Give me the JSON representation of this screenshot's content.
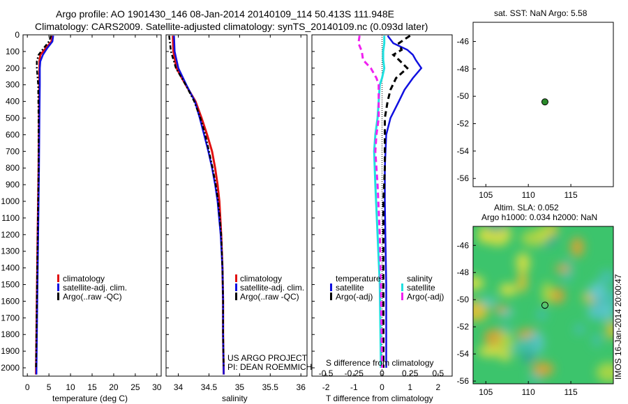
{
  "header": {
    "line1": "Argo profile: AO 1901430_146 08-Jan-2014 20140109_114 50.413S 111.948E",
    "line2": "Climatology: CARS2009. Satellite-adjusted climatology: synTS_20140109.nc (0.093d later)"
  },
  "colors": {
    "climatology": "#e01010",
    "satellite": "#1010e0",
    "argo": "#000000",
    "sal_satellite": "#20e0e0",
    "sal_argo": "#f020f0",
    "sst_marker": "#2a8a2a"
  },
  "chart_data": [
    {
      "type": "line",
      "panel": "temperature",
      "xlabel": "temperature (deg C)",
      "ylim": [
        2050,
        0
      ],
      "xlim": [
        -1,
        31
      ],
      "xticks": [
        "0",
        "5",
        "10",
        "15",
        "20",
        "25",
        "30"
      ],
      "yticks": [
        "0",
        "100",
        "200",
        "300",
        "400",
        "500",
        "600",
        "700",
        "800",
        "900",
        "1000",
        "1100",
        "1200",
        "1300",
        "1400",
        "1500",
        "1600",
        "1700",
        "1800",
        "1900",
        "2000"
      ],
      "legend": [
        "climatology",
        "satellite-adj. clim.",
        "Argo(..raw -QC)"
      ],
      "series": [
        {
          "name": "climatology",
          "depth": [
            5,
            40,
            80,
            120,
            160,
            200,
            300,
            500,
            800,
            1200,
            1600,
            2040
          ],
          "values": [
            5.8,
            5.6,
            4.3,
            3.0,
            2.8,
            2.8,
            2.8,
            2.7,
            2.6,
            2.4,
            2.2,
            2.0
          ]
        },
        {
          "name": "satellite-adj. clim.",
          "depth": [
            5,
            40,
            80,
            120,
            160,
            200,
            300,
            500,
            800,
            1200,
            1600,
            2040
          ],
          "values": [
            6.0,
            5.8,
            4.6,
            3.6,
            3.0,
            2.9,
            2.9,
            2.8,
            2.7,
            2.5,
            2.3,
            2.1
          ]
        },
        {
          "name": "Argo(..raw -QC)",
          "depth": [
            5,
            40,
            80,
            120,
            160,
            200,
            300,
            500,
            800,
            1200,
            1600,
            2000
          ],
          "values": [
            5.5,
            5.0,
            3.8,
            2.6,
            2.2,
            2.2,
            2.5,
            2.6,
            2.6,
            2.4,
            2.2,
            2.0
          ]
        }
      ]
    },
    {
      "type": "line",
      "panel": "salinity",
      "xlabel": "salinity",
      "ylim": [
        2050,
        0
      ],
      "xlim": [
        33.8,
        36.1
      ],
      "xticks": [
        "34",
        "34.5",
        "35",
        "35.5",
        "36"
      ],
      "legend": [
        "climatology",
        "satellite-adj. clim.",
        "Argo(..raw -QC)"
      ],
      "annotation": [
        "US ARGO PROJECT",
        "PI: DEAN ROEMMICH"
      ],
      "series": [
        {
          "name": "climatology",
          "depth": [
            5,
            100,
            200,
            300,
            400,
            500,
            600,
            700,
            800,
            900,
            1000,
            1200,
            1400,
            1600,
            1800,
            2040
          ],
          "values": [
            33.91,
            33.92,
            33.97,
            34.12,
            34.28,
            34.38,
            34.47,
            34.55,
            34.6,
            34.64,
            34.67,
            34.7,
            34.72,
            34.73,
            34.73,
            34.74
          ]
        },
        {
          "name": "satellite-adj. clim.",
          "depth": [
            5,
            100,
            200,
            300,
            400,
            500,
            600,
            700,
            800,
            900,
            1000,
            1200,
            1400,
            1600,
            1800,
            2040
          ],
          "values": [
            33.93,
            33.94,
            34.0,
            34.13,
            34.27,
            34.35,
            34.42,
            34.49,
            34.55,
            34.6,
            34.64,
            34.69,
            34.72,
            34.73,
            34.73,
            34.74
          ]
        },
        {
          "name": "Argo(..raw -QC)",
          "depth": [
            5,
            100,
            200,
            300,
            400,
            500,
            600,
            700,
            800,
            900,
            1000,
            1200,
            1400,
            1600,
            1800,
            2000
          ],
          "values": [
            33.85,
            33.88,
            33.96,
            34.12,
            34.26,
            34.36,
            34.44,
            34.5,
            34.56,
            34.61,
            34.65,
            34.7,
            34.72,
            34.73,
            34.73,
            34.74
          ]
        }
      ]
    },
    {
      "type": "line",
      "panel": "difference",
      "xlabel": "T difference from climatology",
      "xlabel_top": "S difference from climatology",
      "xlim_T": [
        -2.5,
        2.5
      ],
      "xticks_T": [
        "-2",
        "-1",
        "0",
        "1",
        "2"
      ],
      "xticks_S": [
        "-0.5",
        "-0.25",
        "0",
        "0.25",
        "0.5"
      ],
      "legend_titles": [
        "temperature",
        "salinity"
      ],
      "legend": [
        "satellite",
        "Argo(-adj)",
        "satellite",
        "Argo(-adj)"
      ],
      "series": [
        {
          "name": "temperature satellite",
          "depth": [
            5,
            50,
            90,
            120,
            150,
            200,
            260,
            330,
            400,
            500,
            600,
            800,
            1000,
            1200,
            1500,
            1800,
            2000
          ],
          "values": [
            0.2,
            0.4,
            0.9,
            1.1,
            1.2,
            1.4,
            1.1,
            0.8,
            0.6,
            0.3,
            0.15,
            0.1,
            0.1,
            0.12,
            0.15,
            0.15,
            0.15
          ]
        },
        {
          "name": "temperature Argo(-adj)",
          "depth": [
            5,
            50,
            90,
            120,
            150,
            200,
            260,
            330,
            400,
            500,
            600,
            800,
            1000,
            1200,
            1500,
            1800,
            2000
          ],
          "values": [
            1.0,
            0.6,
            0.7,
            0.4,
            0.6,
            0.9,
            0.5,
            0.3,
            0.2,
            0.1,
            0.1,
            0.1,
            0.05,
            0.05,
            0.05,
            0.05,
            0.05
          ]
        },
        {
          "name": "salinity satellite",
          "depth": [
            5,
            50,
            100,
            150,
            200,
            260,
            300,
            400,
            500,
            600,
            700,
            900,
            1200,
            1500,
            2000
          ],
          "values": [
            0.02,
            0.02,
            0.01,
            0.01,
            0.02,
            0.0,
            -0.02,
            -0.03,
            -0.04,
            -0.06,
            -0.07,
            -0.06,
            -0.04,
            -0.02,
            -0.01
          ]
        },
        {
          "name": "salinity Argo(-adj)",
          "depth": [
            5,
            50,
            100,
            150,
            200,
            260,
            300,
            400,
            500,
            600,
            700,
            900,
            1200,
            1500,
            2000
          ],
          "values": [
            -0.2,
            -0.21,
            -0.18,
            -0.17,
            -0.1,
            -0.05,
            -0.03,
            -0.03,
            -0.03,
            -0.05,
            -0.06,
            -0.04,
            -0.02,
            -0.01,
            0.0
          ]
        }
      ]
    },
    {
      "type": "scatter",
      "panel": "sst-map",
      "title": "sat. SST: NaN Argo: 5.58",
      "xlim": [
        103.5,
        120
      ],
      "ylim": [
        -56.6,
        -44.6
      ],
      "xticks": [
        "105",
        "110",
        "115"
      ],
      "yticks": [
        "-46",
        "-48",
        "-50",
        "-52",
        "-54",
        "-56"
      ],
      "points": [
        {
          "x": 111.95,
          "y": -50.41
        }
      ]
    },
    {
      "type": "heatmap",
      "panel": "sla-map",
      "title_lines": [
        "Altim. SLA: 0.052",
        "Argo h1000: 0.034 h2000: NaN"
      ],
      "side_label": "IMOS 16-Jan-2014 20:00:47",
      "xlim": [
        103.5,
        120
      ],
      "ylim": [
        -56.2,
        -44.6
      ],
      "xticks": [
        "105",
        "110",
        "115"
      ],
      "yticks": [
        "-46",
        "-48",
        "-50",
        "-52",
        "-54",
        "-56"
      ],
      "points": [
        {
          "x": 111.95,
          "y": -50.41
        }
      ]
    }
  ]
}
